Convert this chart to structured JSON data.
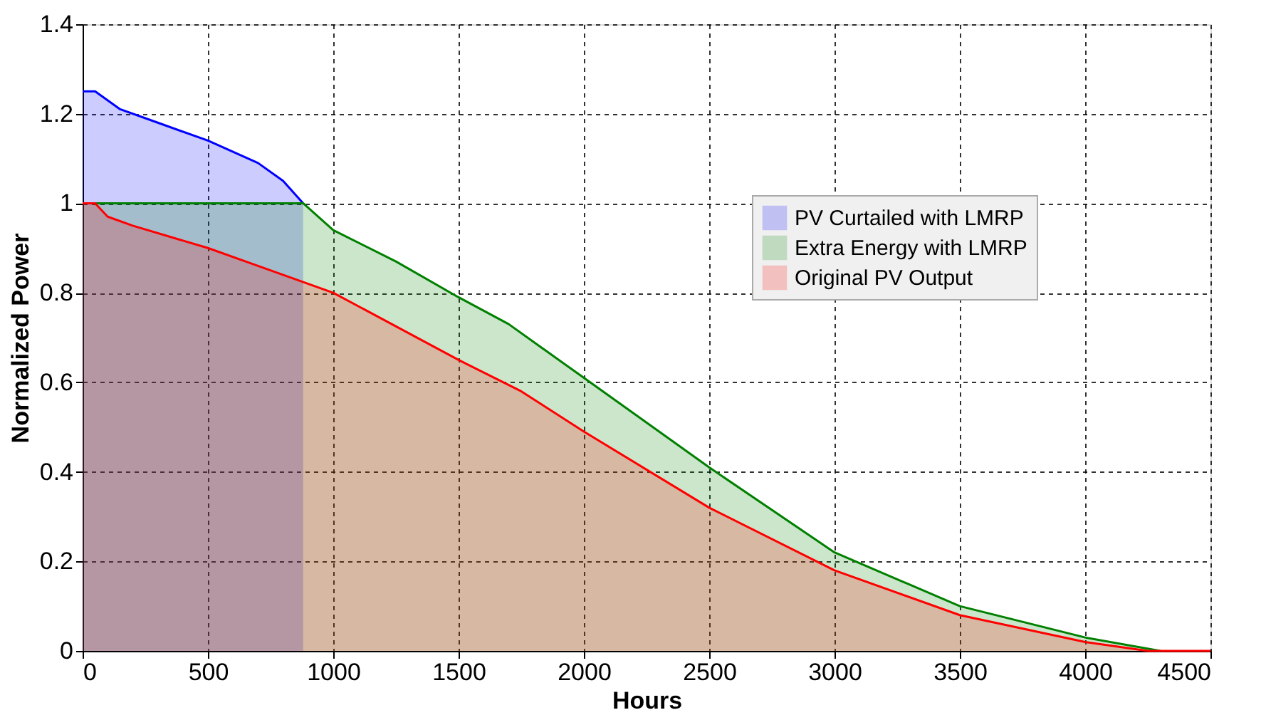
{
  "chart_data": {
    "type": "area",
    "xlabel": "Hours",
    "ylabel": "Normalized Power",
    "xlim": [
      0,
      4500
    ],
    "ylim": [
      0,
      1.4
    ],
    "xticks": [
      0,
      500,
      1000,
      1500,
      2000,
      2500,
      3000,
      3500,
      4000,
      4500
    ],
    "yticks": [
      0,
      0.2,
      0.4,
      0.6,
      0.8,
      1,
      1.2,
      1.4
    ],
    "grid": true,
    "legend": "right",
    "series": [
      {
        "name": "PV Curtailed with LMRP",
        "color": "#0000ff",
        "x": [
          0,
          50,
          150,
          300,
          500,
          700,
          800,
          880
        ],
        "values": [
          1.25,
          1.25,
          1.21,
          1.18,
          1.14,
          1.09,
          1.05,
          1.0
        ]
      },
      {
        "name": "Extra Energy with LMRP",
        "color": "#008000",
        "x": [
          0,
          880,
          1000,
          1250,
          1500,
          1700,
          2000,
          2500,
          3000,
          3500,
          4000,
          4300
        ],
        "values": [
          1.0,
          1.0,
          0.94,
          0.87,
          0.79,
          0.73,
          0.61,
          0.41,
          0.22,
          0.1,
          0.03,
          0
        ]
      },
      {
        "name": "Original PV Output",
        "color": "#ff0000",
        "x": [
          0,
          50,
          100,
          200,
          500,
          700,
          1000,
          1500,
          1750,
          2000,
          2500,
          3000,
          3500,
          4000,
          4250,
          4500
        ],
        "values": [
          1.0,
          1.0,
          0.97,
          0.95,
          0.9,
          0.86,
          0.8,
          0.65,
          0.58,
          0.49,
          0.32,
          0.18,
          0.08,
          0.02,
          0,
          0
        ]
      }
    ]
  }
}
